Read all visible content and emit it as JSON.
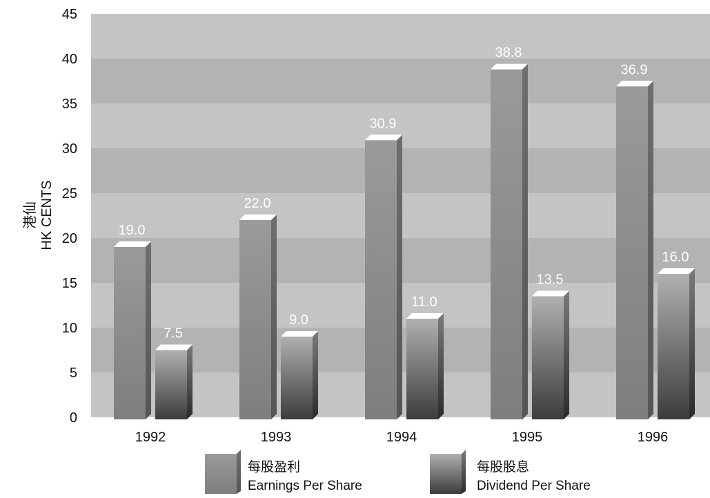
{
  "chart_data": {
    "type": "bar",
    "categories": [
      "1992",
      "1993",
      "1994",
      "1995",
      "1996"
    ],
    "series": [
      {
        "name": "每股盈利 Earnings Per Share",
        "name_zh": "每股盈利",
        "name_en": "Earnings Per Share",
        "values": [
          19.0,
          22.0,
          30.9,
          38.8,
          36.9
        ],
        "labels": [
          "19.0",
          "22.0",
          "30.9",
          "38.8",
          "36.9"
        ],
        "color": "#8c8c8c"
      },
      {
        "name": "每股股息 Dividend Per Share",
        "name_zh": "每股股息",
        "name_en": "Dividend Per Share",
        "values": [
          7.5,
          9.0,
          11.0,
          13.5,
          16.0
        ],
        "labels": [
          "7.5",
          "9.0",
          "11.0",
          "13.5",
          "16.0"
        ],
        "color": "#6a6a6a"
      }
    ],
    "ylabel_zh": "港仙",
    "ylabel_en": "HK CENTS",
    "ylim": [
      0,
      45
    ],
    "yticks": [
      0,
      5,
      10,
      15,
      20,
      25,
      30,
      35,
      40,
      45
    ],
    "grid": "alternating bands",
    "legend": "bottom"
  }
}
